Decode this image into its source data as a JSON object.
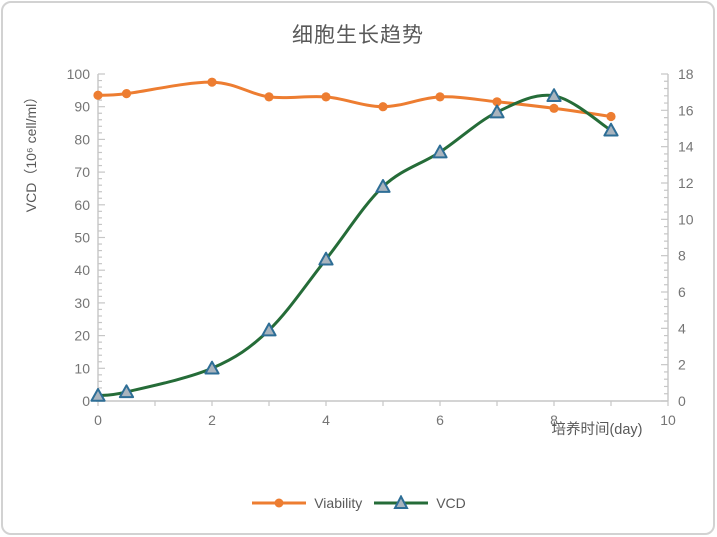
{
  "chart_data": {
    "type": "line",
    "title": "细胞生长趋势",
    "x": [
      0,
      0.5,
      2,
      3,
      4,
      5,
      6,
      7,
      8,
      9
    ],
    "series": [
      {
        "name": "Viability",
        "axis": "left",
        "marker": "circle",
        "color": "#ED7D31",
        "marker_fill": "#ED7D31",
        "marker_stroke": "#ED7D31",
        "values": [
          93.5,
          94,
          97.5,
          93,
          93,
          90,
          93,
          91.5,
          89.5,
          87
        ]
      },
      {
        "name": "VCD",
        "axis": "right",
        "marker": "triangle",
        "color": "#256C38",
        "marker_fill": "#A9B4BE",
        "marker_stroke": "#2E6E96",
        "values": [
          0.3,
          0.5,
          1.8,
          3.9,
          7.8,
          11.8,
          13.7,
          15.9,
          16.8,
          14.9
        ]
      }
    ],
    "left_axis": {
      "label": "VCD（10⁶ cell/ml）",
      "min": 0,
      "max": 100,
      "step": 10,
      "minor_step": 2,
      "tick_labels": [
        "0",
        "10",
        "20",
        "30",
        "40",
        "50",
        "60",
        "70",
        "80",
        "90",
        "100"
      ]
    },
    "right_axis": {
      "min": 0,
      "max": 18,
      "step": 2,
      "minor_step": 0.4,
      "tick_labels": [
        "0",
        "2",
        "4",
        "6",
        "8",
        "10",
        "12",
        "14",
        "16",
        "18"
      ]
    },
    "x_axis": {
      "label": "培养时间(day)",
      "min": 0,
      "max": 10,
      "label_step": 2,
      "tick_step": 1,
      "tick_labels": [
        "0",
        "2",
        "4",
        "6",
        "8",
        "10"
      ]
    },
    "legend": {
      "position": "bottom",
      "entries": [
        "Viability",
        "VCD"
      ]
    },
    "grid": false
  },
  "colors": {
    "axis_line": "#C6C6C6",
    "tick_text": "#757575",
    "title_text": "#595959",
    "frame_border": "#D2D2D2",
    "background": "#FFFFFF"
  }
}
